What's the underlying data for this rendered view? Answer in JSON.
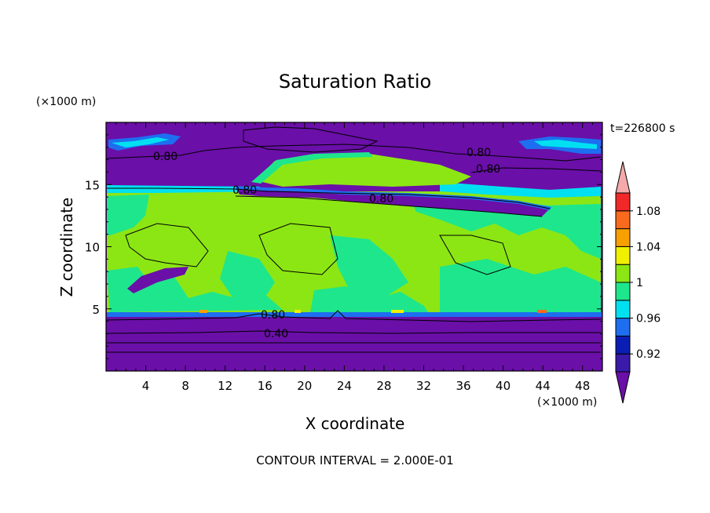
{
  "chart_data": {
    "type": "heatmap",
    "title": "Saturation Ratio",
    "xlabel": "X coordinate",
    "ylabel": "Z coordinate",
    "x_unit": "(×1000 m)",
    "y_unit": "(×1000 m)",
    "time_label": "t=226800 s",
    "footer": "CONTOUR INTERVAL = 2.000E-01",
    "xlim": [
      0,
      50
    ],
    "ylim": [
      0,
      20
    ],
    "x_ticks": [
      4,
      8,
      12,
      16,
      20,
      24,
      28,
      32,
      36,
      40,
      44,
      48
    ],
    "y_ticks": [
      5,
      10,
      15
    ],
    "contour_labels": [
      "0.80",
      "0.80",
      "0.80",
      "0.80",
      "0.80",
      "0.80",
      "0.40"
    ],
    "colorbar": {
      "levels": [
        0.92,
        0.96,
        1,
        1.04,
        1.08
      ],
      "level_labels": [
        "0.92",
        "0.96",
        "1",
        "1.04",
        "1.08"
      ],
      "bins": [
        {
          "color": "#6a0fa8",
          "range": "< 0.90"
        },
        {
          "color": "#3a1aa8",
          "range": "0.90-0.92"
        },
        {
          "color": "#0a1eb4",
          "range": "0.92-0.94"
        },
        {
          "color": "#1e6ef0",
          "range": "0.94-0.96"
        },
        {
          "color": "#00e0f0",
          "range": "0.96-0.98"
        },
        {
          "color": "#1ee68c",
          "range": "0.98-1.00"
        },
        {
          "color": "#8ce614",
          "range": "1.00-1.02"
        },
        {
          "color": "#f0f000",
          "range": "1.02-1.04"
        },
        {
          "color": "#f8a000",
          "range": "1.04-1.06"
        },
        {
          "color": "#f86a1e",
          "range": "1.06-1.08"
        },
        {
          "color": "#f02828",
          "range": "1.08-1.10"
        },
        {
          "color": "#f4aaaa",
          "range": "> 1.10"
        }
      ]
    }
  }
}
